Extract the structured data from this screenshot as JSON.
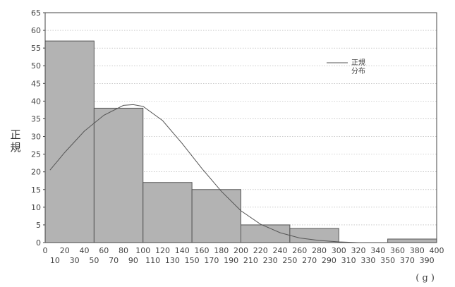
{
  "chart_data": {
    "type": "bar",
    "subtype": "histogram",
    "bins": [
      {
        "from": 0,
        "to": 50,
        "value": 57
      },
      {
        "from": 50,
        "to": 100,
        "value": 38
      },
      {
        "from": 100,
        "to": 150,
        "value": 17
      },
      {
        "from": 150,
        "to": 200,
        "value": 15
      },
      {
        "from": 200,
        "to": 250,
        "value": 5
      },
      {
        "from": 250,
        "to": 300,
        "value": 4
      },
      {
        "from": 300,
        "to": 350,
        "value": 0
      },
      {
        "from": 350,
        "to": 400,
        "value": 1
      }
    ],
    "curve": {
      "name": "正規分布",
      "points": [
        {
          "x": 5,
          "y": 20.5
        },
        {
          "x": 20,
          "y": 25.5
        },
        {
          "x": 40,
          "y": 31.5
        },
        {
          "x": 60,
          "y": 36
        },
        {
          "x": 80,
          "y": 38.8
        },
        {
          "x": 90,
          "y": 39
        },
        {
          "x": 100,
          "y": 38.5
        },
        {
          "x": 120,
          "y": 34.5
        },
        {
          "x": 140,
          "y": 28
        },
        {
          "x": 160,
          "y": 21
        },
        {
          "x": 180,
          "y": 14.5
        },
        {
          "x": 200,
          "y": 9
        },
        {
          "x": 220,
          "y": 5.2
        },
        {
          "x": 240,
          "y": 2.8
        },
        {
          "x": 260,
          "y": 1.3
        },
        {
          "x": 280,
          "y": 0.6
        },
        {
          "x": 300,
          "y": 0.2
        },
        {
          "x": 320,
          "y": 0
        }
      ]
    },
    "ylabel": "正規",
    "unit_label": "( g )",
    "legend": {
      "label_line1": "正規",
      "label_line2": "分布",
      "position": "top-right"
    },
    "ylim": [
      0,
      65
    ],
    "yticks": [
      0,
      5,
      10,
      15,
      20,
      25,
      30,
      35,
      40,
      45,
      50,
      55,
      60,
      65
    ],
    "xlim": [
      0,
      400
    ],
    "xticks_top": [
      0,
      20,
      40,
      60,
      80,
      100,
      120,
      140,
      160,
      180,
      200,
      220,
      240,
      260,
      280,
      300,
      320,
      340,
      360,
      380,
      400
    ],
    "xticks_bottom": [
      10,
      30,
      50,
      70,
      90,
      110,
      130,
      150,
      170,
      190,
      210,
      230,
      250,
      270,
      290,
      310,
      330,
      350,
      370,
      390
    ],
    "grid": true,
    "colors": {
      "bar_fill": "#b3b3b3",
      "bar_stroke": "#555555",
      "curve": "#555555",
      "grid": "#aaaaaa",
      "frame": "#444444"
    }
  }
}
